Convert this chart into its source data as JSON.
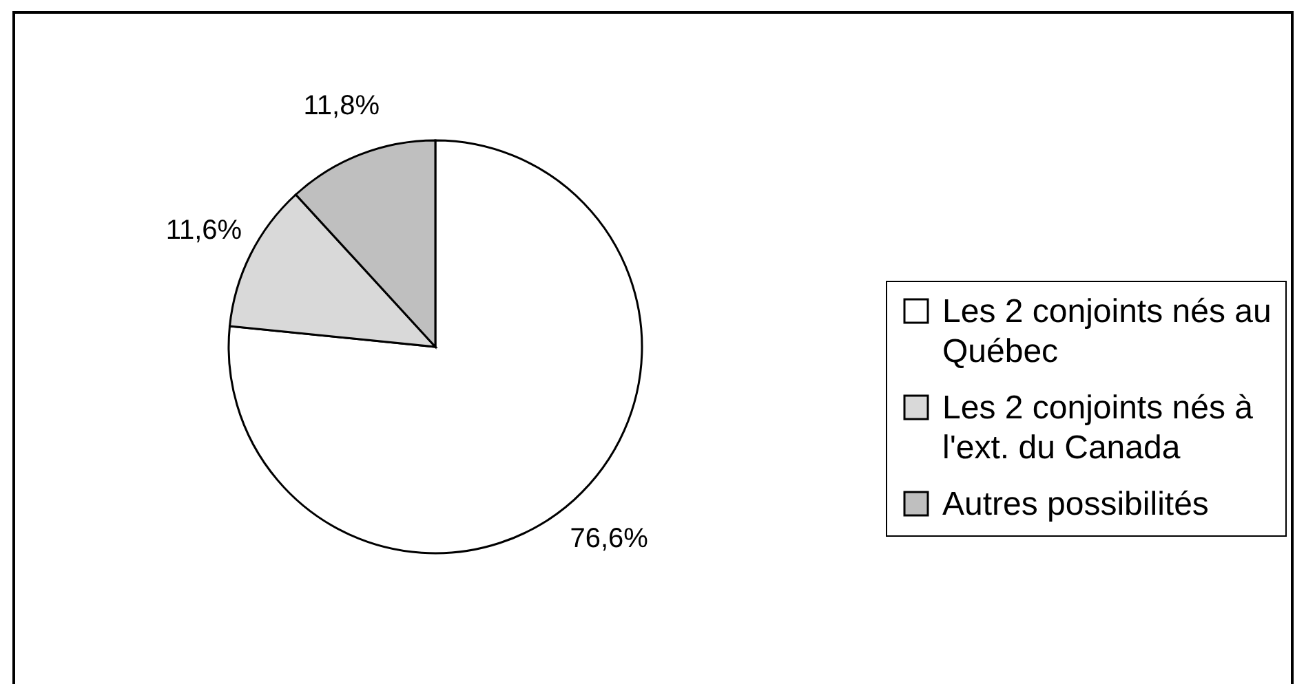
{
  "chart_data": {
    "type": "pie",
    "categories": [
      "Les 2 conjoints nés au Québec",
      "Les 2 conjoints nés à l'ext. du Canada",
      "Autres possibilités"
    ],
    "values": [
      76.6,
      11.6,
      11.8
    ],
    "colors": [
      "#ffffff",
      "#d9d9d9",
      "#bfbfbf"
    ],
    "value_labels": [
      "76,6%",
      "11,6%",
      "11,8%"
    ],
    "legend": "right"
  }
}
